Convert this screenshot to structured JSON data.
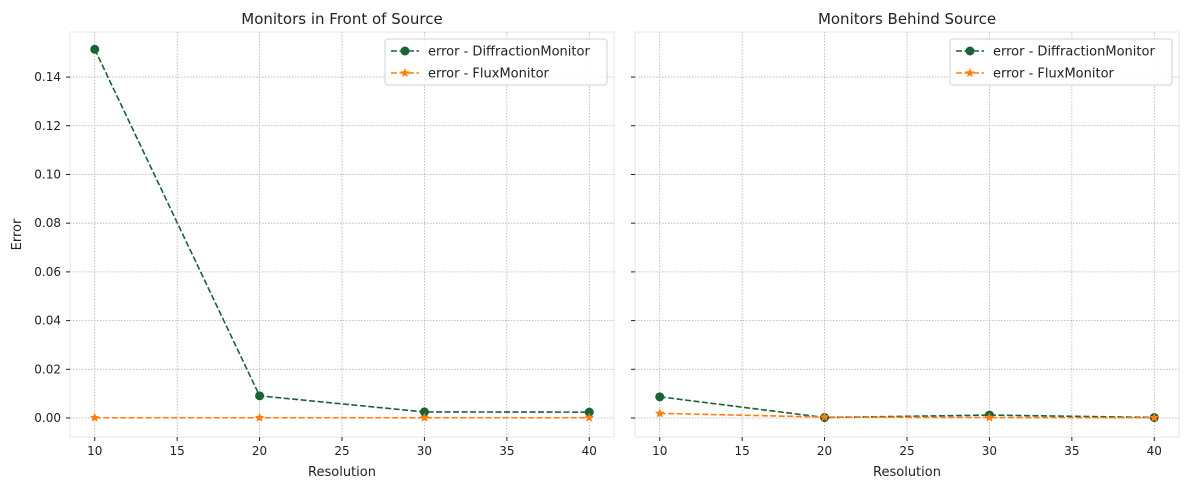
{
  "colors": {
    "diffraction": "#1a6334",
    "flux": "#ff7f0e",
    "grid": "#b0b0b0",
    "frame": "#e6e6e6"
  },
  "chart_data": [
    {
      "type": "line",
      "title": "Monitors in Front of Source",
      "xlabel": "Resolution",
      "ylabel": "Error",
      "x": [
        10,
        20,
        30,
        40
      ],
      "xlim": [
        8.5,
        41.5
      ],
      "ylim": [
        -0.0078,
        0.1585
      ],
      "xticks": [
        10,
        15,
        20,
        25,
        30,
        35,
        40
      ],
      "yticks": [
        "0.00",
        "0.02",
        "0.04",
        "0.06",
        "0.08",
        "0.10",
        "0.12",
        "0.14"
      ],
      "grid": true,
      "legend": "top-right",
      "series": [
        {
          "name": "error - DiffractionMonitor",
          "values": [
            0.1514,
            0.0091,
            0.0025,
            0.0024
          ],
          "marker": "circle",
          "linestyle": "dashed"
        },
        {
          "name": "error - FluxMonitor",
          "values": [
            0.0001,
            0.0001,
            0.0001,
            0.0001
          ],
          "marker": "star",
          "linestyle": "dashed"
        }
      ]
    },
    {
      "type": "line",
      "title": "Monitors Behind Source",
      "xlabel": "Resolution",
      "ylabel": "",
      "x": [
        10,
        20,
        30,
        40
      ],
      "xlim": [
        8.5,
        41.5
      ],
      "ylim": [
        -0.0078,
        0.1585
      ],
      "xticks": [
        10,
        15,
        20,
        25,
        30,
        35,
        40
      ],
      "yticks": [],
      "grid": true,
      "legend": "top-right",
      "series": [
        {
          "name": "error - DiffractionMonitor",
          "values": [
            0.0087,
            0.0002,
            0.0012,
            0.0002
          ],
          "marker": "circle",
          "linestyle": "dashed"
        },
        {
          "name": "error - FluxMonitor",
          "values": [
            0.0019,
            0.0004,
            0.0002,
            0.0001
          ],
          "marker": "star",
          "linestyle": "dashed"
        }
      ]
    }
  ]
}
